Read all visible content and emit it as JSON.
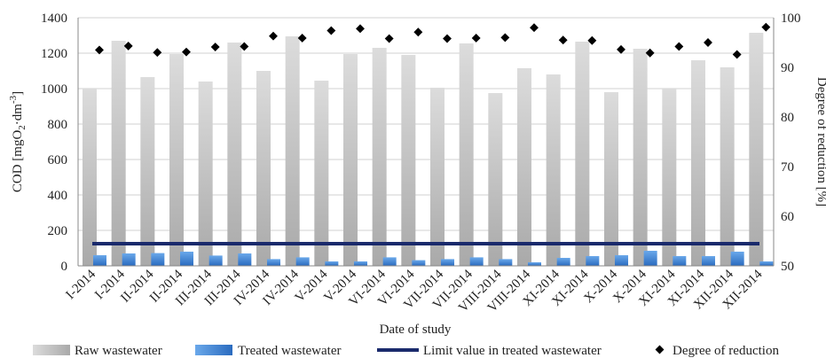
{
  "chart_data": {
    "type": "bar",
    "xlabel": "Date of study",
    "ylabel_left": {
      "main": "COD [mgO",
      "sub": "2",
      "mid": "·dm",
      "sup": "-3",
      "end": "]"
    },
    "ylabel_right": "Degree of reduction [%]",
    "ylim_left": [
      0,
      1400
    ],
    "ylim_right": [
      50,
      100
    ],
    "yticks_left": [
      0,
      200,
      400,
      600,
      800,
      1000,
      1200,
      1400
    ],
    "yticks_right": [
      50,
      60,
      70,
      80,
      90,
      100
    ],
    "grid": true,
    "legend_position": "bottom",
    "categories": [
      "I-2014",
      "I-2014",
      "II-2014",
      "II-2014",
      "III-2014",
      "III-2014",
      "IV-2014",
      "IV-2014",
      "V-2014",
      "V-2014",
      "VI-2014",
      "VI-2014",
      "VII-2014",
      "VII-2014",
      "VIII-2014",
      "VIII-2014",
      "XI-2014",
      "XI-2014",
      "X-2014",
      "X-2014",
      "XI-2014",
      "XI-2014",
      "XII-2014",
      "XII-2014"
    ],
    "series": [
      {
        "name": "Raw wastewater",
        "kind": "bar",
        "axis": "left",
        "color": "#bdbdbd",
        "values": [
          1000,
          1270,
          1065,
          1195,
          1040,
          1260,
          1100,
          1295,
          1045,
          1195,
          1230,
          1190,
          1005,
          1255,
          975,
          1115,
          1080,
          1265,
          980,
          1225,
          1000,
          1160,
          1120,
          1315
        ]
      },
      {
        "name": "Treated wastewater",
        "kind": "bar",
        "axis": "left",
        "color": "#3a7fd0",
        "values": [
          60,
          70,
          72,
          80,
          58,
          70,
          38,
          48,
          25,
          25,
          48,
          32,
          38,
          48,
          38,
          20,
          45,
          55,
          60,
          85,
          55,
          55,
          80,
          25
        ]
      },
      {
        "name": "Limit value in treated wastewater",
        "kind": "line",
        "axis": "left",
        "color": "#1a2a6c",
        "value": 125
      },
      {
        "name": "Degree of reduction",
        "kind": "scatter",
        "axis": "right",
        "color": "#000000",
        "values": [
          93.5,
          94.3,
          93.0,
          93.1,
          94.1,
          94.2,
          96.3,
          95.9,
          97.4,
          97.8,
          95.8,
          97.1,
          95.8,
          95.9,
          96.0,
          98.0,
          95.5,
          95.4,
          93.6,
          92.9,
          94.2,
          95.0,
          92.6,
          98.1
        ]
      }
    ]
  }
}
